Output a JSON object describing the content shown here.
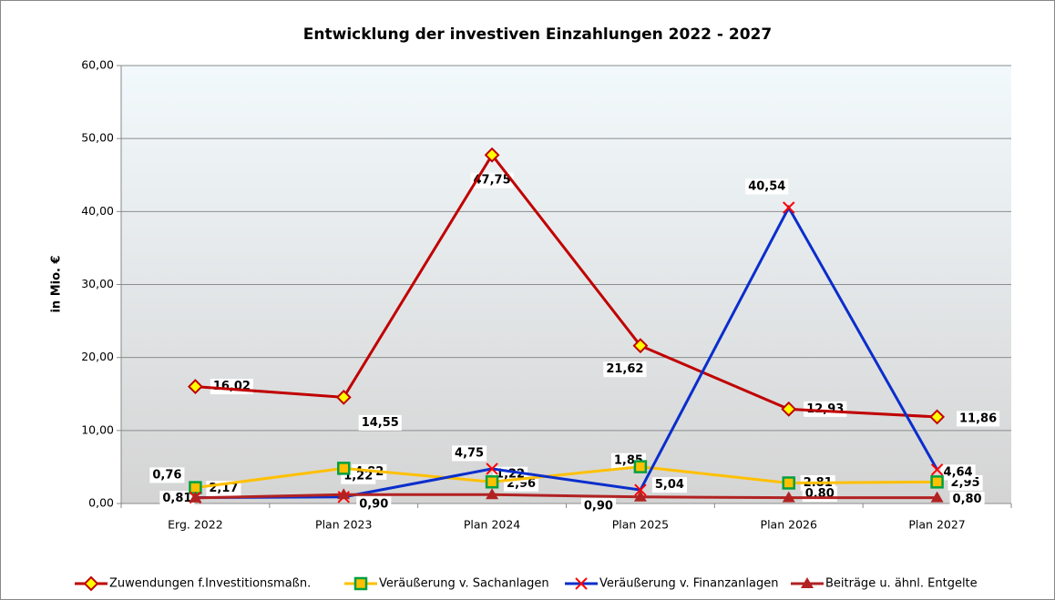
{
  "chart_data": {
    "type": "line",
    "title": "Entwicklung der investiven Einzahlungen 2022 - 2027",
    "y_label": "in Mio. €",
    "categories": [
      "Erg. 2022",
      "Plan 2023",
      "Plan 2024",
      "Plan 2025",
      "Plan 2026",
      "Plan 2027"
    ],
    "ylim": [
      0,
      60
    ],
    "yticks": [
      {
        "value": 0,
        "label": "0,00"
      },
      {
        "value": 10,
        "label": "10,00"
      },
      {
        "value": 20,
        "label": "20,00"
      },
      {
        "value": 30,
        "label": "30,00"
      },
      {
        "value": 40,
        "label": "40,00"
      },
      {
        "value": 50,
        "label": "50,00"
      },
      {
        "value": 60,
        "label": "60,00"
      }
    ],
    "grid": true,
    "legend": "bottom",
    "series": [
      {
        "name": "Zuwendungen f.Investitionsmaßn.",
        "color": "#c00000",
        "marker": "diamond",
        "marker_color": "#ffff00",
        "label_color": "#000000",
        "values": [
          16.02,
          14.55,
          47.75,
          21.62,
          12.93,
          11.86
        ],
        "value_labels": [
          "16,02",
          "14,55",
          "47,75",
          "21,62",
          "12,93",
          "11,86"
        ]
      },
      {
        "name": "Veräußerung v. Sachanlagen",
        "color": "#ffc000",
        "marker": "square",
        "marker_color": "#00a040",
        "label_color": "#000000",
        "values": [
          2.17,
          4.82,
          2.96,
          5.04,
          2.81,
          2.95
        ],
        "value_labels": [
          "2,17",
          "4,82",
          "2,96",
          "5,04",
          "2,81",
          "2,95"
        ]
      },
      {
        "name": "Veräußerung v. Finanzanlagen",
        "color": "#0a2ecc",
        "marker": "x",
        "marker_color": "#ff0000",
        "label_color": "#1f4fc0",
        "values": [
          0.81,
          0.9,
          4.75,
          1.85,
          40.54,
          4.64
        ],
        "value_labels": [
          "0,81",
          "0,90",
          "4,75",
          "1,85",
          "40,54",
          "4,64"
        ]
      },
      {
        "name": "Beiträge u. ähnl. Entgelte",
        "color": "#b22222",
        "marker": "triangle",
        "marker_color": "#b22222",
        "label_color": "#c00000",
        "values": [
          0.76,
          1.22,
          1.22,
          0.9,
          0.8,
          0.8
        ],
        "value_labels": [
          "0,76",
          "1,22",
          "1,22",
          "0,90",
          "0,80",
          "0,80"
        ]
      }
    ]
  }
}
